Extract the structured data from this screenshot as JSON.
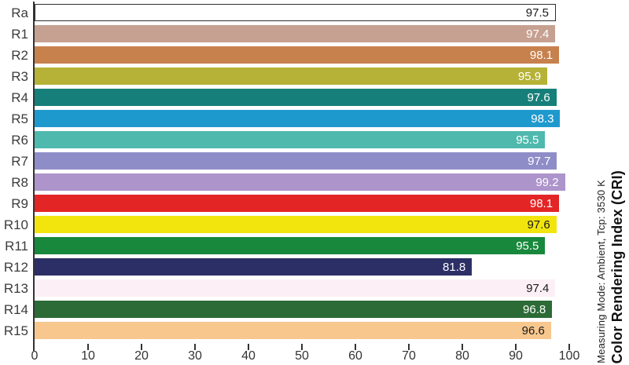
{
  "chart_data": {
    "type": "bar",
    "orientation": "horizontal",
    "title": "Color Rendering Index (CRI)",
    "annotation": "Measuring Mode: Ambient, Tcp: 3530 K",
    "xlim": [
      0,
      101
    ],
    "x_ticks": [
      0,
      10,
      20,
      30,
      40,
      50,
      60,
      70,
      80,
      90,
      100
    ],
    "grid": false,
    "legend": false,
    "categories": [
      "Ra",
      "R1",
      "R2",
      "R3",
      "R4",
      "R5",
      "R6",
      "R7",
      "R8",
      "R9",
      "R10",
      "R11",
      "R12",
      "R13",
      "R14",
      "R15"
    ],
    "values": [
      97.5,
      97.4,
      98.1,
      95.9,
      97.6,
      98.3,
      95.5,
      97.7,
      99.2,
      98.1,
      97.6,
      95.5,
      81.8,
      97.4,
      96.8,
      96.6
    ],
    "bars": [
      {
        "label": "Ra",
        "value": "97.5",
        "color": "#ffffff",
        "text_color": "#1a1a1a",
        "border_color": "#2e2e2e"
      },
      {
        "label": "R1",
        "value": "97.4",
        "color": "#c6a191",
        "text_color": "#ffffff"
      },
      {
        "label": "R2",
        "value": "98.1",
        "color": "#c7814d",
        "text_color": "#ffffff"
      },
      {
        "label": "R3",
        "value": "95.9",
        "color": "#b5b237",
        "text_color": "#ffffff"
      },
      {
        "label": "R4",
        "value": "97.6",
        "color": "#177f7a",
        "text_color": "#ffffff"
      },
      {
        "label": "R5",
        "value": "98.3",
        "color": "#1e99ce",
        "text_color": "#ffffff"
      },
      {
        "label": "R6",
        "value": "95.5",
        "color": "#4fb9ae",
        "text_color": "#ffffff"
      },
      {
        "label": "R7",
        "value": "97.7",
        "color": "#8f8dc7",
        "text_color": "#ffffff"
      },
      {
        "label": "R8",
        "value": "99.2",
        "color": "#ad94ca",
        "text_color": "#ffffff"
      },
      {
        "label": "R9",
        "value": "98.1",
        "color": "#e32526",
        "text_color": "#ffffff"
      },
      {
        "label": "R10",
        "value": "97.6",
        "color": "#f2e50e",
        "text_color": "#1a1a1a"
      },
      {
        "label": "R11",
        "value": "95.5",
        "color": "#18883c",
        "text_color": "#ffffff"
      },
      {
        "label": "R12",
        "value": "81.8",
        "color": "#2c2f66",
        "text_color": "#ffffff"
      },
      {
        "label": "R13",
        "value": "97.4",
        "color": "#fcf0f6",
        "text_color": "#1a1a1a"
      },
      {
        "label": "R14",
        "value": "96.8",
        "color": "#2c6b36",
        "text_color": "#ffffff"
      },
      {
        "label": "R15",
        "value": "96.6",
        "color": "#f8c78e",
        "text_color": "#1a1a1a"
      }
    ]
  }
}
